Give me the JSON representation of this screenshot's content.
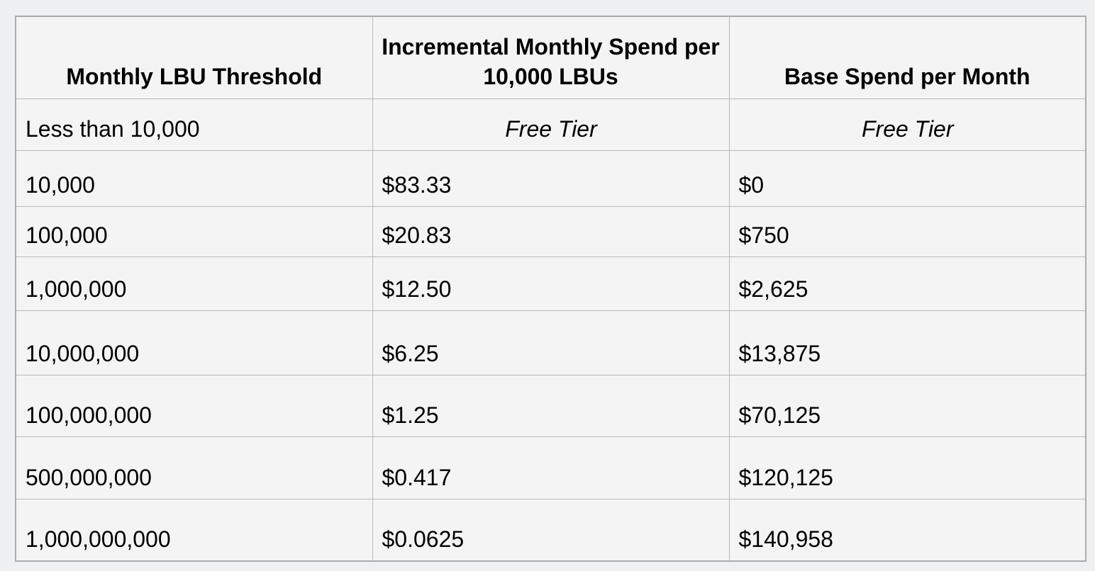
{
  "colors": {
    "page_background": "#eff0f1",
    "cell_background": "#f4f4f5",
    "border": "#b5b8ba",
    "text": "#000000"
  },
  "table": {
    "columns": [
      {
        "label": "Monthly LBU Threshold"
      },
      {
        "label": "Incremental Monthly Spend per 10,000 LBUs"
      },
      {
        "label": "Base Spend per Month"
      }
    ],
    "rows": [
      {
        "cells": [
          "Less than 10,000",
          "Free Tier",
          "Free Tier"
        ]
      },
      {
        "cells": [
          "10,000",
          "$83.33",
          "$0"
        ]
      },
      {
        "cells": [
          "100,000",
          "$20.83",
          "$750"
        ]
      },
      {
        "cells": [
          "1,000,000",
          "$12.50",
          "$2,625"
        ]
      },
      {
        "cells": [
          "10,000,000",
          "$6.25",
          "$13,875"
        ]
      },
      {
        "cells": [
          "100,000,000",
          "$1.25",
          "$70,125"
        ]
      },
      {
        "cells": [
          "500,000,000",
          "$0.417",
          "$120,125"
        ]
      },
      {
        "cells": [
          "1,000,000,000",
          "$0.0625",
          "$140,958"
        ]
      }
    ]
  },
  "chart_data": {
    "type": "table",
    "columns": [
      "Monthly LBU Threshold",
      "Incremental Monthly Spend per 10,000 LBUs",
      "Base Spend per Month"
    ],
    "rows": [
      [
        "Less than 10,000",
        "Free Tier",
        "Free Tier"
      ],
      [
        "10,000",
        "$83.33",
        "$0"
      ],
      [
        "100,000",
        "$20.83",
        "$750"
      ],
      [
        "1,000,000",
        "$12.50",
        "$2,625"
      ],
      [
        "10,000,000",
        "$6.25",
        "$13,875"
      ],
      [
        "100,000,000",
        "$1.25",
        "$70,125"
      ],
      [
        "500,000,000",
        "$0.417",
        "$120,125"
      ],
      [
        "1,000,000,000",
        "$0.0625",
        "$140,958"
      ]
    ]
  }
}
